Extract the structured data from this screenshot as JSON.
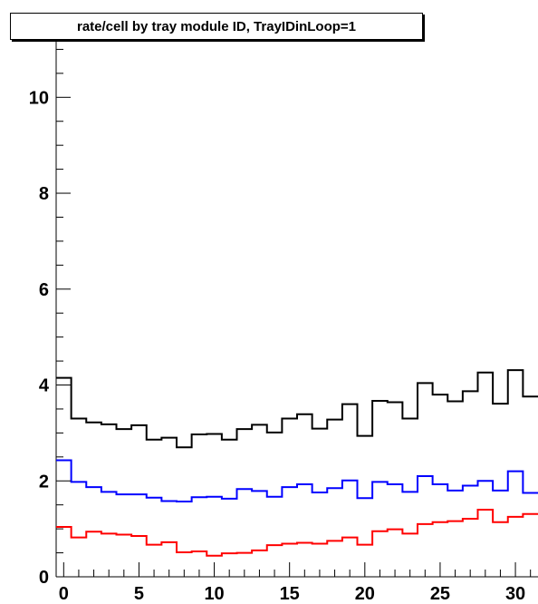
{
  "chart_data": {
    "type": "line",
    "title": "rate/cell by tray module ID, TrayIDinLoop=1",
    "xlabel": "",
    "ylabel": "",
    "xlim": [
      -0.5,
      31.5
    ],
    "ylim": [
      0,
      11.5
    ],
    "x_ticks": [
      0,
      5,
      10,
      15,
      20,
      25,
      30
    ],
    "y_ticks": [
      0,
      2,
      4,
      6,
      8,
      10
    ],
    "grid": false,
    "legend": "none",
    "style": "step histogram",
    "series": [
      {
        "color": "#000000",
        "values": [
          4.15,
          3.3,
          3.22,
          3.18,
          3.08,
          3.16,
          2.86,
          2.9,
          2.7,
          2.97,
          2.98,
          2.86,
          3.08,
          3.17,
          3.01,
          3.3,
          3.39,
          3.09,
          3.28,
          3.6,
          2.94,
          3.67,
          3.64,
          3.3,
          4.04,
          3.8,
          3.66,
          3.87,
          4.26,
          3.61,
          4.31,
          3.76
        ]
      },
      {
        "color": "#0000ff",
        "values": [
          2.43,
          1.98,
          1.87,
          1.77,
          1.72,
          1.72,
          1.65,
          1.58,
          1.57,
          1.66,
          1.67,
          1.63,
          1.83,
          1.79,
          1.67,
          1.87,
          1.93,
          1.76,
          1.85,
          2.01,
          1.64,
          1.98,
          1.93,
          1.77,
          2.1,
          1.93,
          1.8,
          1.9,
          2.0,
          1.8,
          2.2,
          1.75
        ]
      },
      {
        "color": "#ff0000",
        "values": [
          1.04,
          0.82,
          0.94,
          0.9,
          0.88,
          0.85,
          0.67,
          0.72,
          0.51,
          0.53,
          0.44,
          0.49,
          0.5,
          0.55,
          0.66,
          0.69,
          0.71,
          0.69,
          0.75,
          0.82,
          0.67,
          0.95,
          0.99,
          0.9,
          1.1,
          1.14,
          1.16,
          1.21,
          1.4,
          1.14,
          1.25,
          1.31
        ]
      }
    ]
  }
}
